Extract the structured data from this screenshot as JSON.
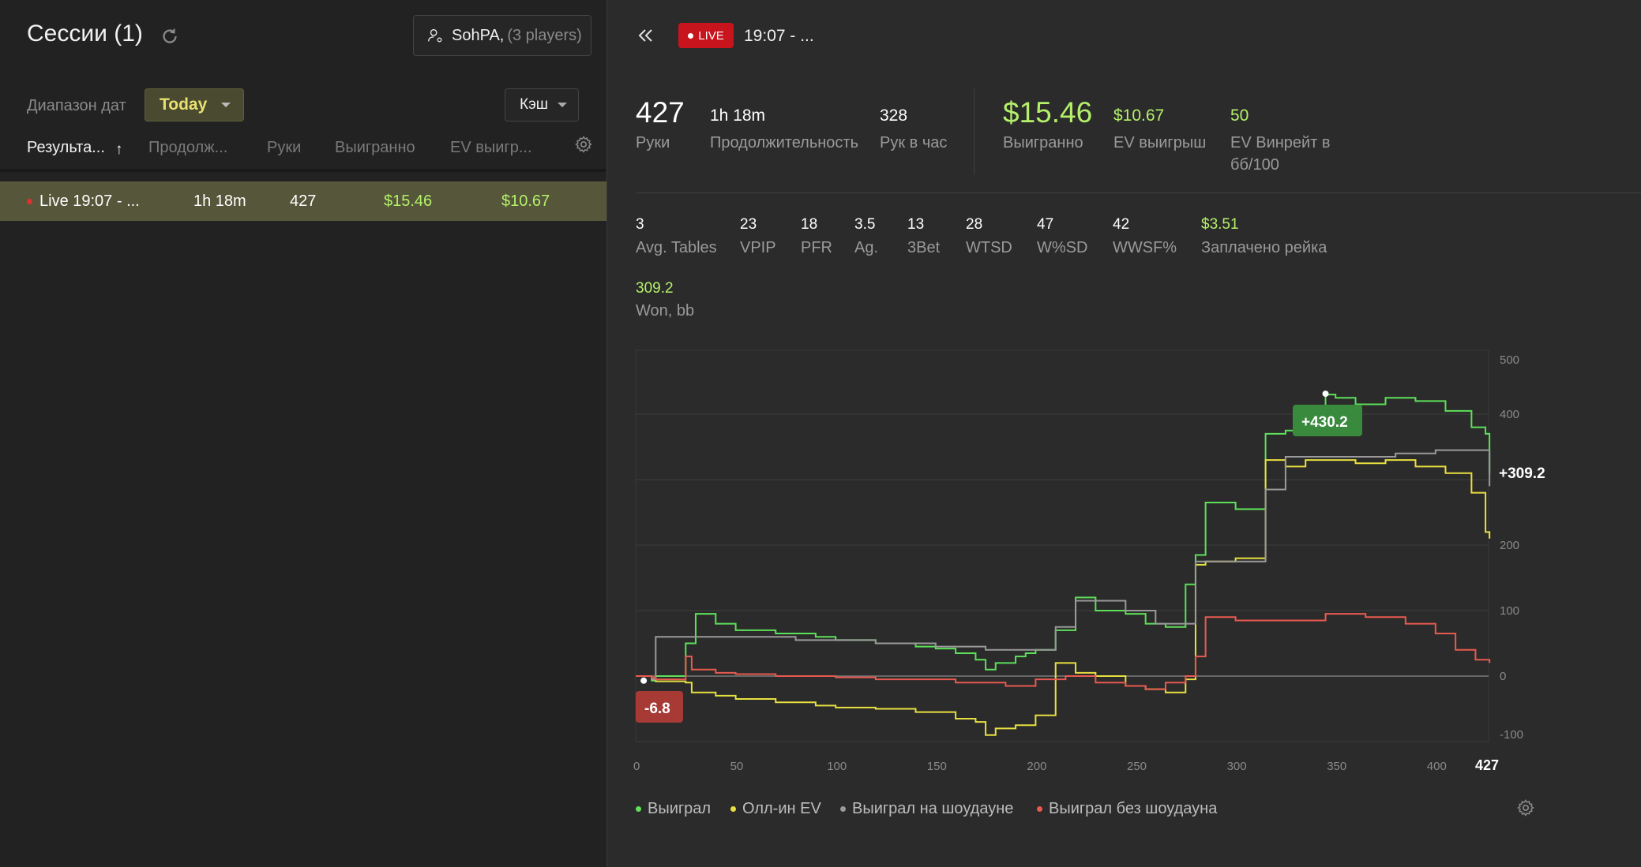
{
  "left_panel": {
    "title": "Сессии (1)",
    "player": {
      "name": "SohPA,",
      "count": "(3 players)"
    },
    "date_range_label": "Диапазон дат",
    "date_range_value": "Today",
    "game_type": "Кэш",
    "columns": [
      "Результа...",
      "Продолж...",
      "Руки",
      "Выигранно",
      "EV выигр..."
    ],
    "sort_indicator": "↑",
    "rows": [
      {
        "name": "Live 19:07 - ...",
        "duration": "1h 18m",
        "hands": "427",
        "won": "$15.46",
        "ev_won": "$10.67"
      }
    ]
  },
  "session": {
    "live_label": "LIVE",
    "title": "19:07 - ...",
    "hands": {
      "value": "427",
      "label": "Руки"
    },
    "duration": {
      "value": "1h 18m",
      "label": "Продолжительность"
    },
    "hands_per_hour": {
      "value": "328",
      "label": "Рук в час"
    },
    "won": {
      "value": "$15.46",
      "label": "Выигранно"
    },
    "ev_won": {
      "value": "$10.67",
      "label": "EV выигрыш"
    },
    "ev_winrate": {
      "value": "50",
      "label_line1": "EV Винрейт в",
      "label_line2": "бб/100"
    },
    "stats": [
      {
        "value": "3",
        "label": "Avg. Tables"
      },
      {
        "value": "23",
        "label": "VPIP"
      },
      {
        "value": "18",
        "label": "PFR"
      },
      {
        "value": "3.5",
        "label": "Ag."
      },
      {
        "value": "13",
        "label": "3Bet"
      },
      {
        "value": "28",
        "label": "WTSD"
      },
      {
        "value": "47",
        "label": "W%SD"
      },
      {
        "value": "42",
        "label": "WWSF%"
      },
      {
        "value": "$3.51",
        "label": "Заплачено рейка"
      }
    ],
    "won_bb": {
      "value": "309.2",
      "label": "Won, bb"
    }
  },
  "colors": {
    "accent_green": "#b5f06a",
    "live_red": "#c8141c",
    "won": "#5de05a",
    "ev": "#e8e040",
    "showdown": "#9a9a9a",
    "no_showdown": "#e85a50"
  },
  "chart_data": {
    "type": "line",
    "x_ticks": [
      "0",
      "50",
      "100",
      "150",
      "200",
      "250",
      "300",
      "350",
      "400"
    ],
    "x_max_label": "427",
    "y_ticks": [
      "500",
      "400",
      "200",
      "100",
      "0",
      "-100"
    ],
    "xlim": [
      0,
      427
    ],
    "ylim": [
      -100,
      500
    ],
    "grid": true,
    "annotations": {
      "max": "+430.2",
      "min": "-6.8",
      "end": "+309.2"
    },
    "series": [
      {
        "name": "Выиграл",
        "color": "#5de05a",
        "x": [
          0,
          8,
          10,
          25,
          30,
          40,
          50,
          70,
          90,
          100,
          120,
          140,
          150,
          160,
          170,
          175,
          180,
          190,
          195,
          200,
          210,
          220,
          230,
          245,
          255,
          265,
          275,
          280,
          285,
          300,
          315,
          325,
          335,
          345,
          350,
          360,
          375,
          390,
          405,
          418,
          425,
          427
        ],
        "y": [
          0,
          -7,
          0,
          50,
          95,
          80,
          70,
          65,
          60,
          55,
          50,
          45,
          42,
          35,
          25,
          10,
          20,
          30,
          35,
          40,
          70,
          120,
          100,
          95,
          80,
          75,
          140,
          185,
          265,
          255,
          370,
          375,
          395,
          430,
          425,
          415,
          425,
          420,
          405,
          380,
          370,
          309
        ]
      },
      {
        "name": "Олл-ин EV",
        "color": "#e8e040",
        "x": [
          0,
          8,
          10,
          25,
          28,
          40,
          50,
          70,
          90,
          100,
          120,
          140,
          150,
          160,
          170,
          175,
          180,
          190,
          200,
          210,
          220,
          230,
          245,
          255,
          265,
          275,
          280,
          285,
          300,
          315,
          325,
          335,
          345,
          360,
          375,
          390,
          405,
          418,
          425,
          427
        ],
        "y": [
          0,
          -5,
          -8,
          -10,
          -25,
          -30,
          -35,
          -40,
          -45,
          -48,
          -50,
          -55,
          -55,
          -65,
          -70,
          -90,
          -80,
          -75,
          -60,
          20,
          5,
          0,
          -15,
          -20,
          -25,
          -5,
          170,
          175,
          180,
          330,
          320,
          330,
          330,
          325,
          330,
          320,
          310,
          280,
          220,
          210
        ]
      },
      {
        "name": "Выиграл на шоудауне",
        "color": "#9a9a9a",
        "x": [
          0,
          8,
          10,
          30,
          50,
          80,
          100,
          120,
          150,
          160,
          175,
          190,
          200,
          210,
          220,
          245,
          260,
          275,
          280,
          300,
          315,
          325,
          340,
          360,
          380,
          400,
          420,
          425,
          427
        ],
        "y": [
          0,
          -5,
          60,
          60,
          60,
          55,
          55,
          50,
          45,
          45,
          40,
          40,
          40,
          75,
          115,
          100,
          80,
          80,
          175,
          175,
          285,
          335,
          335,
          335,
          340,
          345,
          345,
          345,
          290
        ]
      },
      {
        "name": "Выиграл без шоудауна",
        "color": "#e85a50",
        "x": [
          0,
          8,
          10,
          25,
          28,
          40,
          50,
          70,
          90,
          100,
          120,
          140,
          160,
          175,
          185,
          200,
          215,
          230,
          245,
          255,
          265,
          275,
          280,
          285,
          300,
          320,
          345,
          365,
          385,
          400,
          410,
          420,
          427
        ],
        "y": [
          0,
          -2,
          -5,
          30,
          10,
          5,
          3,
          0,
          0,
          -2,
          -5,
          -5,
          -10,
          -10,
          -15,
          -5,
          0,
          -10,
          -15,
          -20,
          -10,
          0,
          30,
          90,
          85,
          85,
          95,
          90,
          80,
          65,
          40,
          25,
          20
        ]
      }
    ]
  }
}
